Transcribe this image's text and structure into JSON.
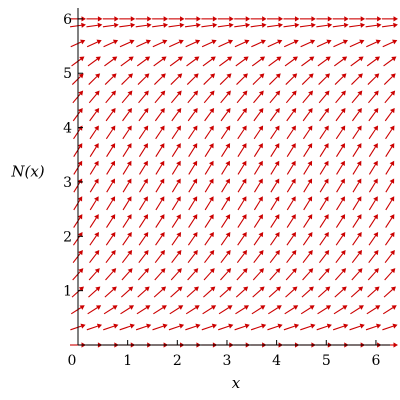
{
  "chart_data": {
    "type": "direction_field",
    "xlabel": "x",
    "ylabel": "N(x)",
    "xlim": [
      0,
      6.2832
    ],
    "ylim": [
      0,
      6.2
    ],
    "x_ticks": [
      {
        "value": 0,
        "label": "0"
      },
      {
        "value": 1,
        "label": "1"
      },
      {
        "value": 2,
        "label": "2"
      },
      {
        "value": 3,
        "label": "3"
      },
      {
        "value": 4,
        "label": "4"
      },
      {
        "value": 5,
        "label": "5"
      },
      {
        "value": 6,
        "label": "6"
      }
    ],
    "y_ticks": [
      {
        "value": 1,
        "label": "1"
      },
      {
        "value": 2,
        "label": "2"
      },
      {
        "value": 3,
        "label": "3"
      },
      {
        "value": 4,
        "label": "4"
      },
      {
        "value": 5,
        "label": "5"
      },
      {
        "value": 6,
        "label": "6"
      }
    ],
    "field_grid": {
      "x_values": [
        0,
        0.3307,
        0.6614,
        0.9921,
        1.3228,
        1.6535,
        1.9842,
        2.3149,
        2.6456,
        2.9763,
        3.307,
        3.6377,
        3.9684,
        4.2991,
        4.6298,
        4.9605,
        5.2912,
        5.6219,
        5.9526,
        6.2832
      ],
      "y_values": [
        0,
        0.3263,
        0.6526,
        0.9789,
        1.3053,
        1.6316,
        1.9579,
        2.2842,
        2.6105,
        2.9368,
        3.2632,
        3.5895,
        3.9158,
        4.2421,
        4.5684,
        4.8947,
        5.2211,
        5.5474,
        5.8737,
        6.0
      ]
    },
    "slope_function": "N*(6-N)/6",
    "arrow_color": "#cc0000",
    "grid": false
  }
}
